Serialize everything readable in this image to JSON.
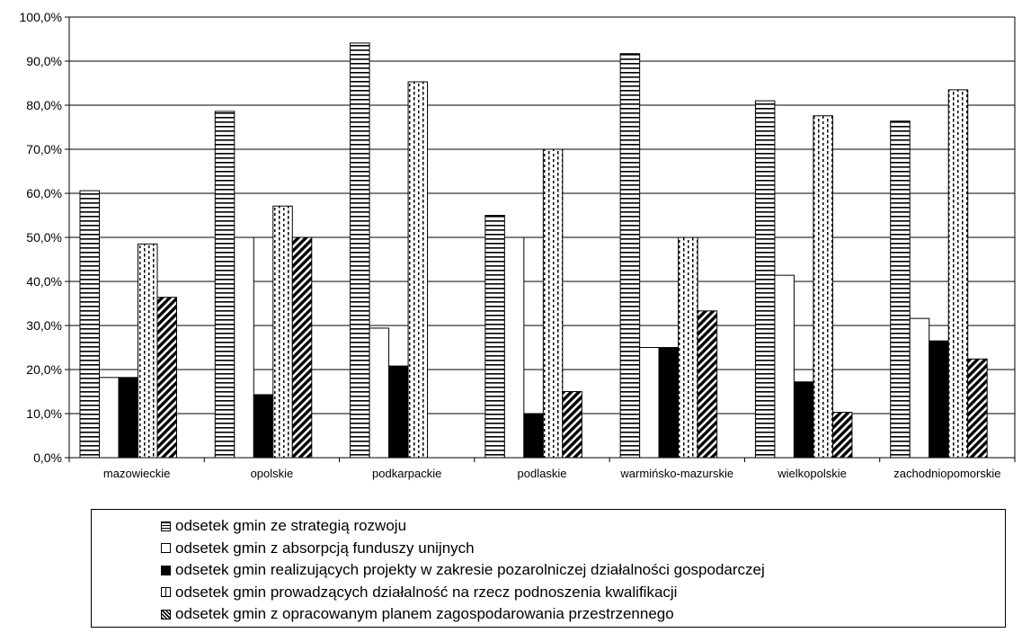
{
  "chart_data": {
    "type": "bar",
    "title": "",
    "xlabel": "",
    "ylabel": "",
    "ylim": [
      0,
      100
    ],
    "yticks": [
      "0,0%",
      "10,0%",
      "20,0%",
      "30,0%",
      "40,0%",
      "50,0%",
      "60,0%",
      "70,0%",
      "80,0%",
      "90,0%",
      "100,0%"
    ],
    "grid": true,
    "legend_position": "bottom",
    "categories": [
      "mazowieckie",
      "opolskie",
      "podkarpackie",
      "podlaskie",
      "warmińsko-mazurskie",
      "wielkopolskie",
      "zachodniopomorskie"
    ],
    "series": [
      {
        "name": "odsetek gmin ze strategią rozwoju",
        "pattern": "horizontal-lines",
        "values": [
          60.6,
          78.6,
          94.1,
          55.0,
          91.7,
          81.0,
          76.4
        ]
      },
      {
        "name": "odsetek gmin z absorpcją funduszy unijnych",
        "pattern": "white",
        "values": [
          18.2,
          50.0,
          29.4,
          50.0,
          25.0,
          41.4,
          31.6
        ]
      },
      {
        "name": "odsetek gmin realizujących projekty w zakresie pozarolniczej działalności gospodarczej",
        "pattern": "black",
        "values": [
          18.2,
          14.3,
          20.8,
          10.0,
          25.0,
          17.2,
          26.5
        ]
      },
      {
        "name": "odsetek gmin prowadzących działalność na rzecz podnoszenia kwalifikacji",
        "pattern": "dotted-dashed",
        "values": [
          48.5,
          57.1,
          85.3,
          70.0,
          50.0,
          77.6,
          83.5
        ]
      },
      {
        "name": "odsetek gmin z opracowanym planem zagospodarowania przestrzennego",
        "pattern": "diagonal-hatch",
        "values": [
          36.4,
          50.0,
          0,
          15.0,
          33.3,
          10.3,
          22.4
        ]
      }
    ]
  }
}
